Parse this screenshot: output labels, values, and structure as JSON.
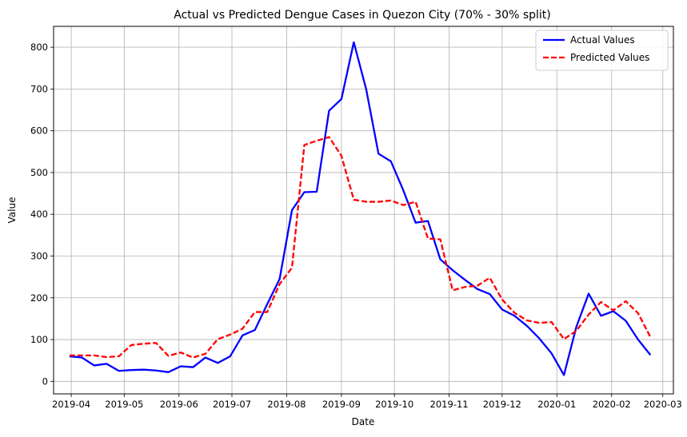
{
  "chart_data": {
    "type": "line",
    "title": "Actual vs Predicted Dengue Cases in Quezon City (70% - 30% split)",
    "xlabel": "Date",
    "ylabel": "Value",
    "x_ticks": [
      "2019-04",
      "2019-05",
      "2019-06",
      "2019-07",
      "2019-08",
      "2019-09",
      "2019-10",
      "2019-11",
      "2019-12",
      "2020-01",
      "2020-02",
      "2020-03"
    ],
    "xlim": [
      "2019-03-22",
      "2020-03-07"
    ],
    "y_ticks": [
      0,
      100,
      200,
      300,
      400,
      500,
      600,
      700,
      800
    ],
    "ylim": [
      -30,
      850
    ],
    "grid": true,
    "legend_position": "top-right",
    "x": [
      "2019-03-31",
      "2019-04-07",
      "2019-04-14",
      "2019-04-21",
      "2019-04-28",
      "2019-05-05",
      "2019-05-12",
      "2019-05-19",
      "2019-05-26",
      "2019-06-02",
      "2019-06-09",
      "2019-06-16",
      "2019-06-23",
      "2019-06-30",
      "2019-07-07",
      "2019-07-14",
      "2019-07-21",
      "2019-07-28",
      "2019-08-04",
      "2019-08-11",
      "2019-08-18",
      "2019-08-25",
      "2019-09-01",
      "2019-09-08",
      "2019-09-15",
      "2019-09-22",
      "2019-09-29",
      "2019-10-06",
      "2019-10-13",
      "2019-10-20",
      "2019-10-27",
      "2019-11-03",
      "2019-11-10",
      "2019-11-17",
      "2019-11-24",
      "2019-12-01",
      "2019-12-08",
      "2019-12-15",
      "2019-12-22",
      "2019-12-29",
      "2020-01-05",
      "2020-01-12",
      "2020-01-19",
      "2020-01-26",
      "2020-02-02",
      "2020-02-09",
      "2020-02-16",
      "2020-02-23"
    ],
    "series": [
      {
        "name": "Actual Values",
        "color": "#0000ff",
        "style": "solid",
        "values": [
          60,
          57,
          38,
          42,
          25,
          27,
          28,
          26,
          22,
          36,
          34,
          57,
          44,
          60,
          110,
          123,
          185,
          245,
          410,
          453,
          454,
          648,
          676,
          812,
          700,
          545,
          527,
          458,
          380,
          384,
          292,
          266,
          243,
          221,
          209,
          172,
          157,
          133,
          103,
          67,
          15,
          130,
          210,
          157,
          168,
          145,
          100,
          63
        ]
      },
      {
        "name": "Predicted Values",
        "color": "#ff0000",
        "style": "dashed",
        "values": [
          62,
          62,
          62,
          58,
          60,
          87,
          90,
          92,
          61,
          69,
          57,
          66,
          101,
          112,
          126,
          166,
          166,
          233,
          272,
          566,
          576,
          585,
          540,
          435,
          430,
          430,
          433,
          422,
          430,
          342,
          340,
          218,
          226,
          229,
          248,
          196,
          164,
          146,
          140,
          142,
          101,
          121,
          160,
          190,
          170,
          192,
          163,
          106
        ]
      }
    ]
  }
}
